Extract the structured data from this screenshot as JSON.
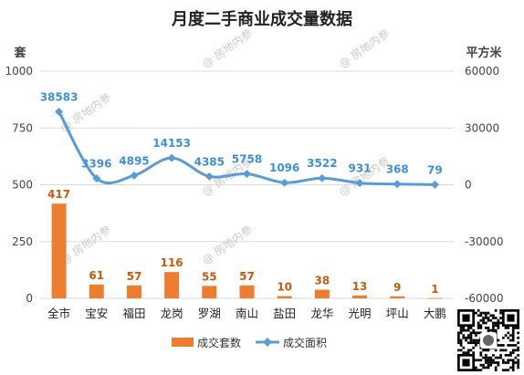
{
  "chart_data": {
    "type": "bar",
    "title": "月度二手商业成交量数据",
    "left_axis_unit": "套",
    "right_axis_unit": "平方米",
    "categories": [
      "全市",
      "宝安",
      "福田",
      "龙岗",
      "罗湖",
      "南山",
      "盐田",
      "龙华",
      "光明",
      "坪山",
      "大鹏"
    ],
    "ylim_left": [
      0,
      1000
    ],
    "yticks_left": [
      "0",
      "250",
      "500",
      "750",
      "1000"
    ],
    "ylim_right": [
      -60000,
      60000
    ],
    "yticks_right": [
      "-60000",
      "-30000",
      "0",
      "30000",
      "60000"
    ],
    "grid": true,
    "legend_position": "bottom",
    "series": [
      {
        "name": "成交套数",
        "type": "bar",
        "axis": "left",
        "color": "#ED7D31",
        "values": [
          417,
          61,
          57,
          116,
          55,
          57,
          10,
          38,
          13,
          9,
          1
        ]
      },
      {
        "name": "成交面积",
        "type": "line",
        "axis": "right",
        "color": "#5B9BD5",
        "values": [
          38583,
          3396,
          4895,
          14153,
          4385,
          5758,
          1096,
          3522,
          931,
          368,
          79
        ]
      }
    ]
  },
  "watermark": {
    "text": "房地内参"
  },
  "qr_code": {
    "icon": "qr-code-icon"
  }
}
